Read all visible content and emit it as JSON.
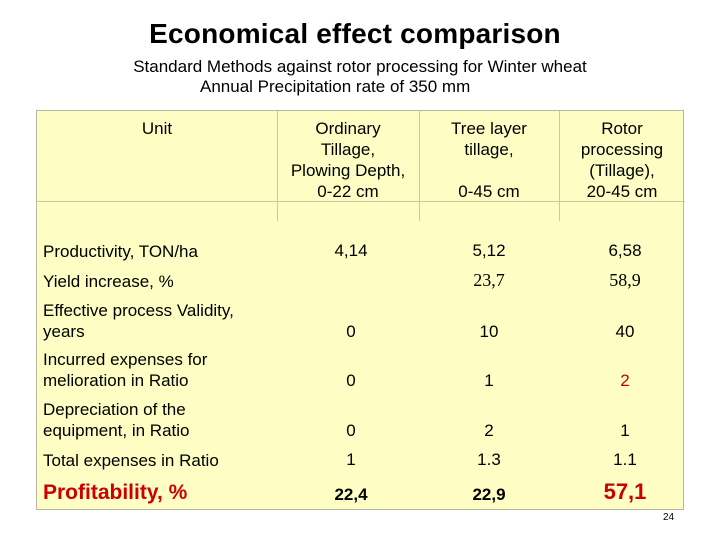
{
  "title": "Economical effect comparison",
  "subtitle_line1": "Standard Methods against rotor processing for Winter wheat",
  "subtitle_line2": "Annual Precipitation rate of 350 mm",
  "columns": {
    "unit": "Unit",
    "ordinary": [
      "Ordinary",
      "Tillage,",
      "Plowing Depth,",
      "0-22 cm"
    ],
    "tree_layer": [
      "Tree layer",
      "tillage,",
      "0-45 cm"
    ],
    "rotor": [
      "Rotor",
      "processing",
      "(Tillage),",
      "20-45 cm"
    ]
  },
  "rows": {
    "productivity": {
      "label": "Productivity, TON/ha",
      "values": [
        "4,14",
        "5,12",
        "6,58"
      ]
    },
    "yield": {
      "label": "Yield increase, %",
      "values": [
        "",
        "23,7",
        "58,9"
      ]
    },
    "validity": {
      "label": [
        "Effective process Validity,",
        "years"
      ],
      "values": [
        "0",
        "10",
        "40"
      ]
    },
    "melioration": {
      "label": [
        "Incurred expenses for",
        "melioration in Ratio"
      ],
      "values": [
        "0",
        "1",
        "2"
      ]
    },
    "depreciation": {
      "label": [
        "Depreciation of the",
        "equipment, in Ratio"
      ],
      "values": [
        "0",
        "2",
        "1"
      ]
    },
    "total": {
      "label": "Total expenses in Ratio",
      "values": [
        "1",
        "1.3",
        "1.1"
      ]
    },
    "profitability": {
      "label": "Profitability, %",
      "values": [
        "22,4",
        "22,9",
        "57,1"
      ]
    }
  },
  "page_number": "24",
  "colors": {
    "table_background": "#fdfdc4",
    "highlight_red": "#cc0000"
  }
}
